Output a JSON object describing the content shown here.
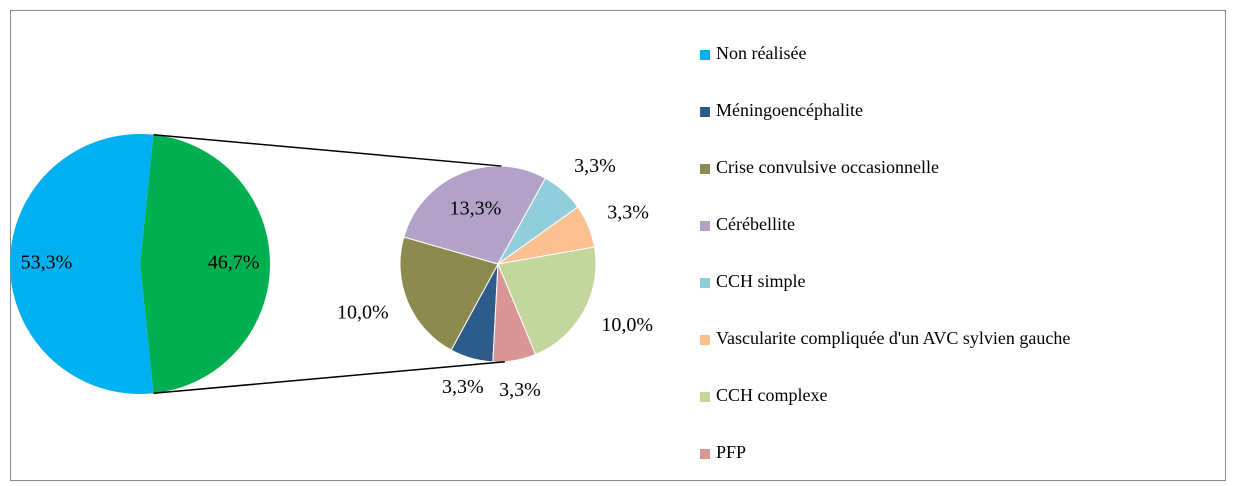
{
  "chart_data": {
    "type": "pie_of_pie",
    "categories": [
      "Non réalisée",
      "Méningoencéphalite",
      "Crise convulsive occasionnelle",
      "Cérébellite",
      "CCH simple",
      "Vascularite compliquée d'un AVC sylvien gauche",
      "CCH complexe",
      "PFP"
    ],
    "values": [
      53.3,
      3.3,
      10.0,
      13.3,
      3.3,
      3.3,
      10.0,
      3.3
    ],
    "value_labels": [
      "53,3%",
      "3,3%",
      "10,0%",
      "13,3%",
      "3,3%",
      "3,3%",
      "10,0%",
      "3,3%"
    ],
    "colors": [
      "#00b0f0",
      "#2e5c8a",
      "#8c8a4e",
      "#b3a2c7",
      "#92cddc",
      "#fac090",
      "#c3d69b",
      "#d99694"
    ],
    "split_value": 46.7,
    "split_label": "46,7%",
    "split_color": "#00b050"
  }
}
